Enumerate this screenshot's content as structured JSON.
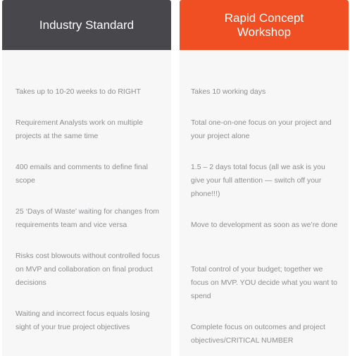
{
  "columns": [
    {
      "title": "Industry Standard",
      "items": [
        "Takes up to 10-20 weeks to do RIGHT",
        "Requirement Analysts work on multiple projects at the same time",
        "400 emails and comments to define final scope",
        "25 ‘Days of Waste’ waiting for changes from requirements team and vice versa",
        "Risks cost blowouts without controlled focus on MVP and collaboration on final product decisions",
        "Waiting and incorrect focus equals losing sight of your true project objectives"
      ],
      "colors": {
        "header": "#47474c"
      }
    },
    {
      "title": "Rapid Concept Workshop",
      "items": [
        "Takes 10 working days",
        "Total one-on-one focus on your project and your project alone",
        "1.5 – 2 days total focus (all we ask is you give your full attention — switch off your phone!!!)",
        "Move to development as soon as we’re done",
        "Total control of your budget; together we focus on MVP. YOU decide what you want to spend",
        "Complete focus on outcomes and project objectives/CRITICAL NUMBER"
      ],
      "colors": {
        "header": "#f04f23"
      }
    }
  ],
  "colors": {
    "body_background": "#f7f7f8",
    "text": "#8e8e92"
  }
}
